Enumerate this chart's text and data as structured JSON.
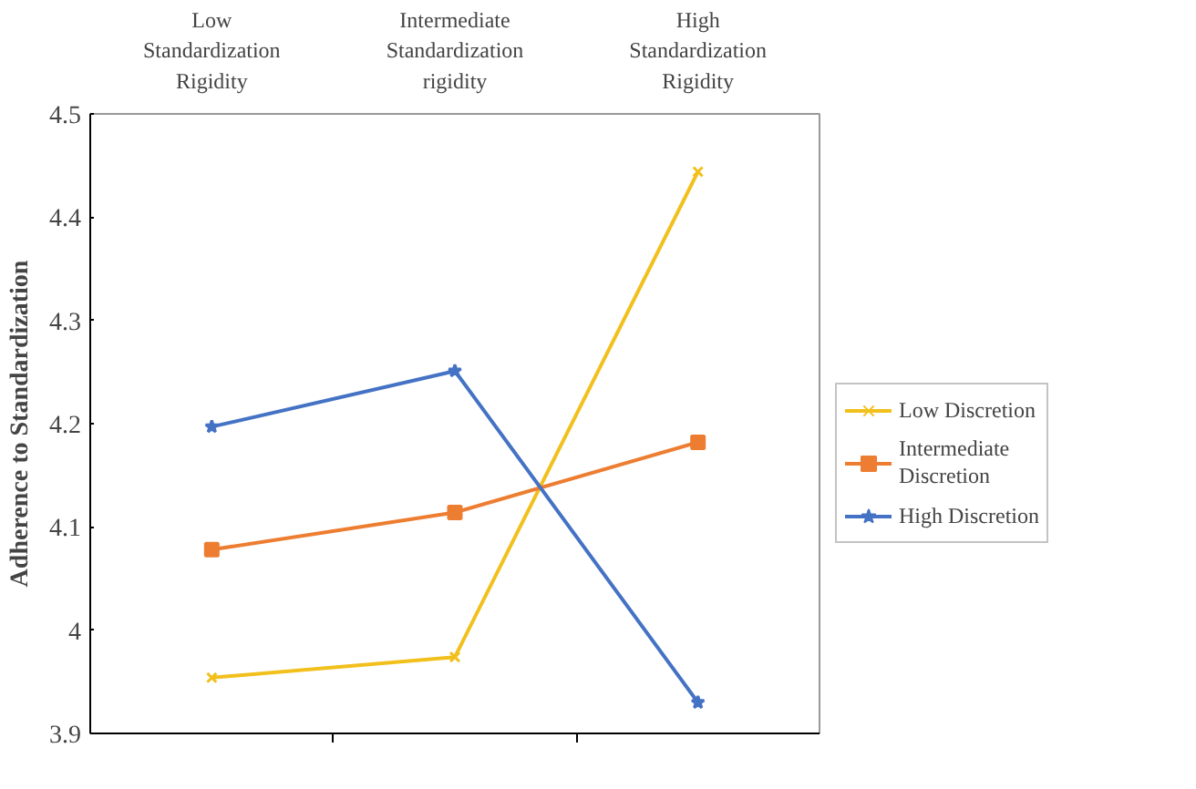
{
  "chart_data": {
    "type": "line",
    "categories": [
      "Low Standardization Rigidity",
      "Intermediate Standardization rigidity",
      "High Standardization Rigidity"
    ],
    "ylabel": "Adherence to Standardization",
    "ylim": [
      3.9,
      4.5
    ],
    "yticks": [
      3.9,
      4,
      4.1,
      4.2,
      4.3,
      4.4,
      4.5
    ],
    "series": [
      {
        "name": "Low Discretion",
        "color": "#f2c01c",
        "marker": "cross",
        "values": [
          3.954,
          3.974,
          4.444
        ]
      },
      {
        "name": "Intermediate Discretion",
        "color": "#ed7d31",
        "marker": "square",
        "values": [
          4.078,
          4.114,
          4.182
        ]
      },
      {
        "name": "High Discretion",
        "color": "#4472c4",
        "marker": "star",
        "values": [
          4.197,
          4.251,
          3.93
        ]
      }
    ],
    "grid": false,
    "legend": "right"
  }
}
